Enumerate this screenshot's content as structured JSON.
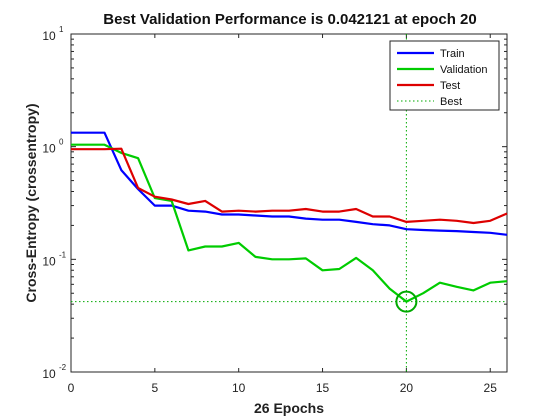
{
  "chart_data": {
    "type": "line",
    "title": "Best Validation Performance is 0.042121 at epoch 20",
    "xlabel": "26 Epochs",
    "ylabel": "Cross-Entropy  (crossentropy)",
    "xlim": [
      0,
      26
    ],
    "ylim": [
      0.01,
      10
    ],
    "yscale": "log",
    "grid": false,
    "legend_position": "top-right",
    "x_ticks": [
      0,
      5,
      10,
      15,
      20,
      25
    ],
    "y_ticks": [
      {
        "value": 0.01,
        "base": "10",
        "exp": "-2"
      },
      {
        "value": 0.1,
        "base": "10",
        "exp": "-1"
      },
      {
        "value": 1,
        "base": "10",
        "exp": "0"
      },
      {
        "value": 10,
        "base": "10",
        "exp": "1"
      }
    ],
    "x": [
      0,
      1,
      2,
      3,
      4,
      5,
      6,
      7,
      8,
      9,
      10,
      11,
      12,
      13,
      14,
      15,
      16,
      17,
      18,
      19,
      20,
      21,
      22,
      23,
      24,
      25,
      26
    ],
    "series": [
      {
        "name": "Train",
        "color": "#0000ff",
        "values": [
          1.33,
          1.33,
          1.33,
          0.62,
          0.42,
          0.3,
          0.3,
          0.27,
          0.265,
          0.25,
          0.25,
          0.245,
          0.24,
          0.24,
          0.23,
          0.225,
          0.225,
          0.215,
          0.205,
          0.2,
          0.185,
          0.182,
          0.18,
          0.178,
          0.175,
          0.172,
          0.165
        ]
      },
      {
        "name": "Validation",
        "color": "#00cc00",
        "values": [
          1.04,
          1.04,
          1.04,
          0.88,
          0.79,
          0.35,
          0.33,
          0.12,
          0.13,
          0.13,
          0.14,
          0.105,
          0.1,
          0.1,
          0.102,
          0.08,
          0.082,
          0.103,
          0.08,
          0.055,
          0.042121,
          0.05,
          0.062,
          0.057,
          0.053,
          0.062,
          0.064
        ]
      },
      {
        "name": "Test",
        "color": "#dd0000",
        "values": [
          0.95,
          0.95,
          0.95,
          0.96,
          0.43,
          0.36,
          0.34,
          0.31,
          0.33,
          0.265,
          0.27,
          0.265,
          0.27,
          0.27,
          0.28,
          0.265,
          0.265,
          0.28,
          0.24,
          0.24,
          0.215,
          0.22,
          0.225,
          0.22,
          0.21,
          0.22,
          0.255
        ]
      }
    ],
    "best": {
      "name": "Best",
      "epoch": 20,
      "value": 0.042121,
      "color": "#00aa00"
    }
  }
}
